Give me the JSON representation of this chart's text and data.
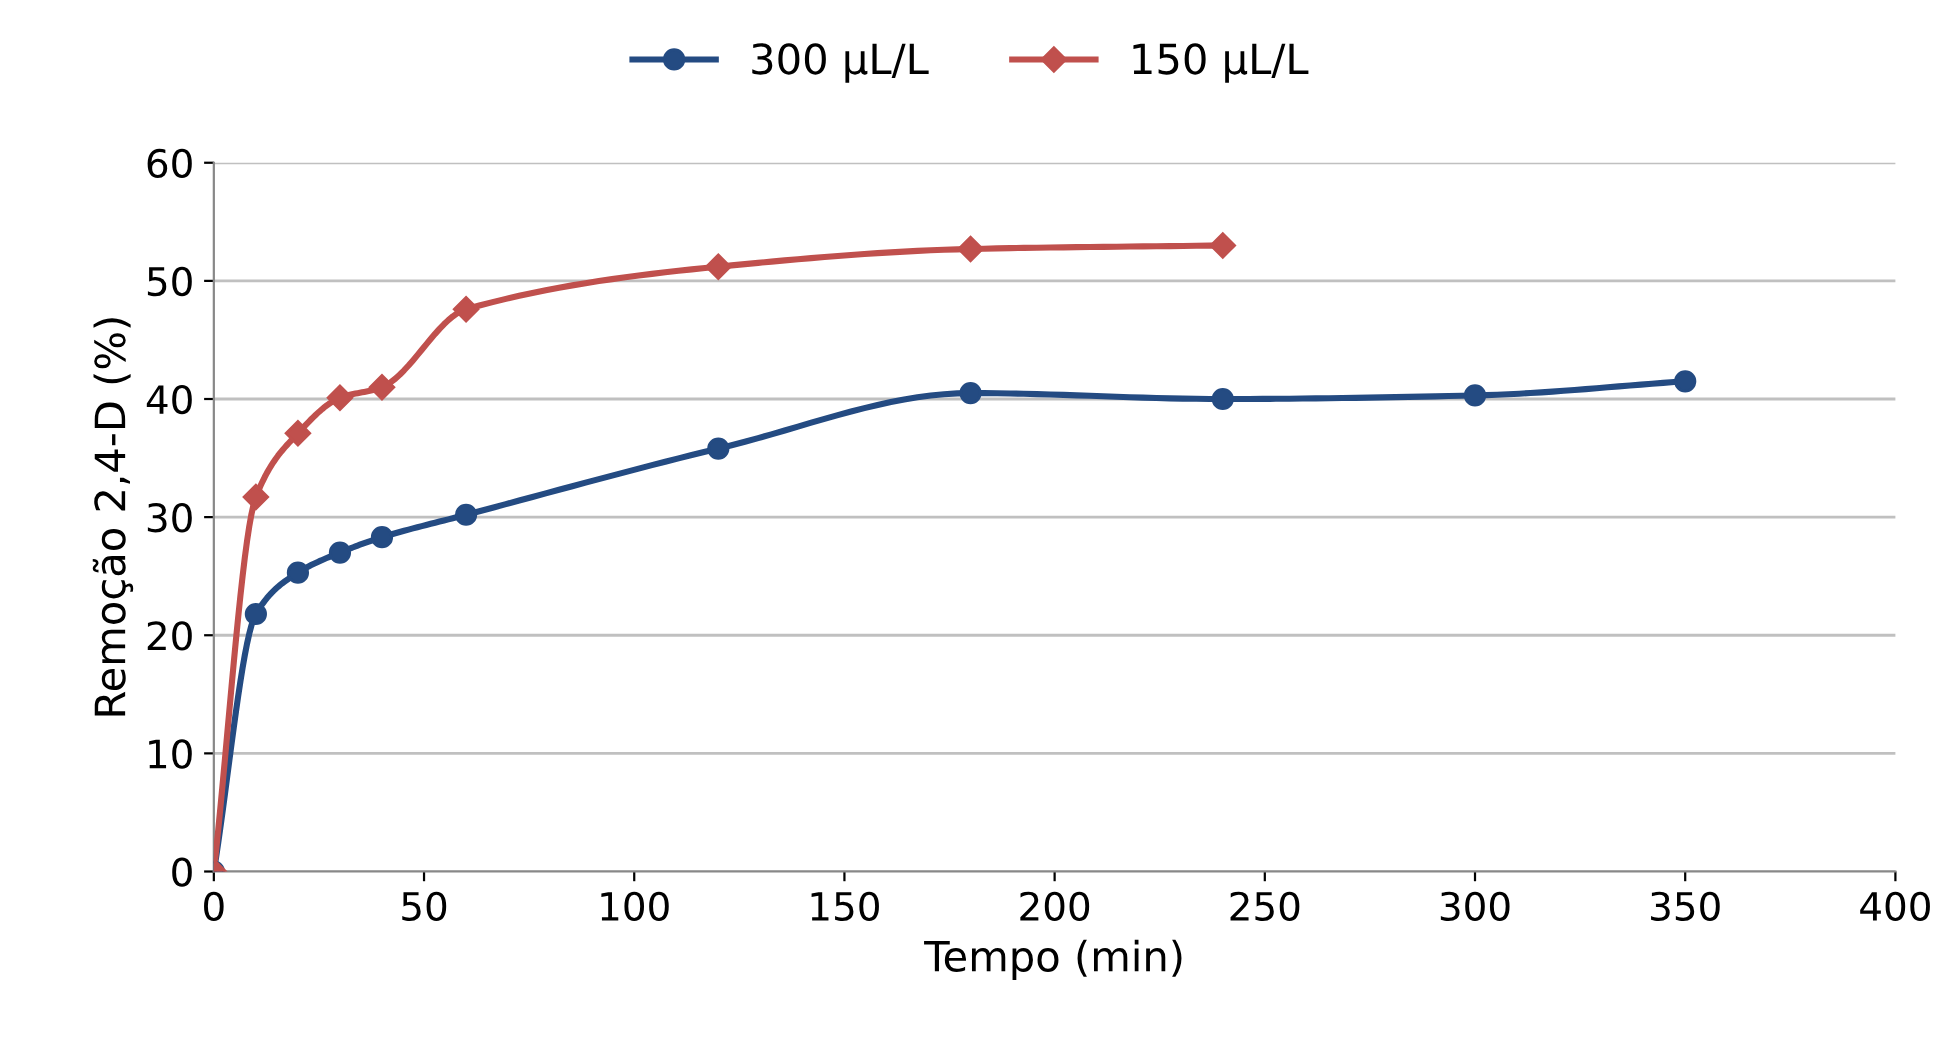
{
  "chart_data": {
    "type": "line",
    "xlabel": "Tempo (min)",
    "ylabel": "Remoção 2,4-D (%)",
    "xlim": [
      0,
      400
    ],
    "xticks": [
      0,
      50,
      100,
      150,
      200,
      250,
      300,
      350,
      400
    ],
    "ylim": [
      0,
      60
    ],
    "yticks": [
      0,
      10,
      20,
      30,
      40,
      50,
      60
    ],
    "grid": "y",
    "legend": "top",
    "series": [
      {
        "name": "300 µL/L",
        "color": "#244b82",
        "marker": "circle",
        "x": [
          0,
          10,
          20,
          30,
          40,
          60,
          120,
          180,
          240,
          300,
          350
        ],
        "values": [
          0,
          21.8,
          25.3,
          27,
          28.3,
          30.2,
          35.8,
          40.5,
          40,
          40.3,
          41.5
        ]
      },
      {
        "name": "150 µL/L",
        "color": "#c0504d",
        "marker": "diamond",
        "x": [
          0,
          10,
          20,
          30,
          40,
          60,
          120,
          180,
          240
        ],
        "values": [
          0,
          31.7,
          37.1,
          40.1,
          41,
          47.6,
          51.2,
          52.7,
          53
        ]
      }
    ]
  }
}
